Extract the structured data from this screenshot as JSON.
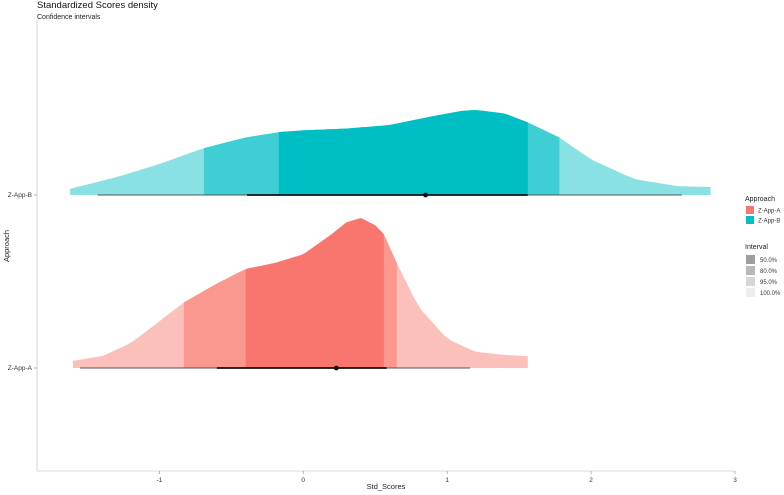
{
  "chart_data": {
    "type": "density-interval",
    "title": "Standardized Scores density",
    "subtitle": "Confidence intervals",
    "xlabel": "Std_Scores",
    "ylabel": "Approach",
    "xlim": [
      -1.85,
      3.0
    ],
    "x_ticks": [
      -1,
      0,
      1,
      2,
      3
    ],
    "x_tick_labels": [
      "-1",
      "0",
      "1",
      "2",
      "3"
    ],
    "categories": [
      "Z-App-A",
      "Z-App-B"
    ],
    "grid": false,
    "legend_position": "right",
    "series": [
      {
        "name": "Z-App-A",
        "color": "#F8766D",
        "density_x": [
          -1.6,
          -1.4,
          -1.2,
          -1.0,
          -0.83,
          -0.6,
          -0.4,
          -0.2,
          0.0,
          0.2,
          0.3,
          0.4,
          0.5,
          0.56,
          0.65,
          0.8,
          1.0,
          1.2,
          1.4,
          1.56
        ],
        "density_y": [
          0.05,
          0.08,
          0.17,
          0.32,
          0.45,
          0.58,
          0.68,
          0.72,
          0.78,
          0.92,
          1.0,
          1.03,
          0.98,
          0.92,
          0.72,
          0.42,
          0.2,
          0.11,
          0.09,
          0.08
        ],
        "intervals": {
          "50.0%": [
            -0.4,
            0.56
          ],
          "80.0%": [
            -0.83,
            0.65
          ],
          "95.0%": [
            -1.6,
            1.56
          ],
          "100.0%": [
            -1.6,
            1.56
          ]
        },
        "interval_line_thin": [
          -1.55,
          1.16
        ],
        "interval_line_thick": [
          -0.6,
          0.58
        ],
        "point_estimate": 0.23
      },
      {
        "name": "Z-App-B",
        "color": "#00BFC4",
        "density_x": [
          -1.62,
          -1.3,
          -1.0,
          -0.69,
          -0.4,
          -0.17,
          0.0,
          0.3,
          0.6,
          0.9,
          1.1,
          1.2,
          1.4,
          1.56,
          1.78,
          2.0,
          2.3,
          2.6,
          2.83
        ],
        "density_y": [
          0.07,
          0.2,
          0.35,
          0.53,
          0.65,
          0.71,
          0.73,
          0.75,
          0.79,
          0.89,
          0.95,
          0.96,
          0.92,
          0.82,
          0.65,
          0.4,
          0.18,
          0.1,
          0.09
        ],
        "intervals": {
          "50.0%": [
            -0.17,
            1.56
          ],
          "80.0%": [
            -0.69,
            1.78
          ],
          "95.0%": [
            -1.62,
            2.83
          ],
          "100.0%": [
            -1.62,
            2.83
          ]
        },
        "interval_line_thin": [
          -1.43,
          2.63
        ],
        "interval_line_thick": [
          -0.39,
          1.56
        ],
        "point_estimate": 0.85
      }
    ],
    "legend": {
      "approach_title": "Approach",
      "approach_items": [
        {
          "label": "Z-App-A",
          "color": "#F8766D"
        },
        {
          "label": "Z-App-B",
          "color": "#00BFC4"
        }
      ],
      "interval_title": "Interval",
      "interval_items": [
        {
          "label": "50.0%",
          "color": "#9E9E9E"
        },
        {
          "label": "80.0%",
          "color": "#B8B8B8"
        },
        {
          "label": "95.0%",
          "color": "#D6D6D6"
        },
        {
          "label": "100.0%",
          "color": "#EDEDED"
        }
      ]
    }
  }
}
